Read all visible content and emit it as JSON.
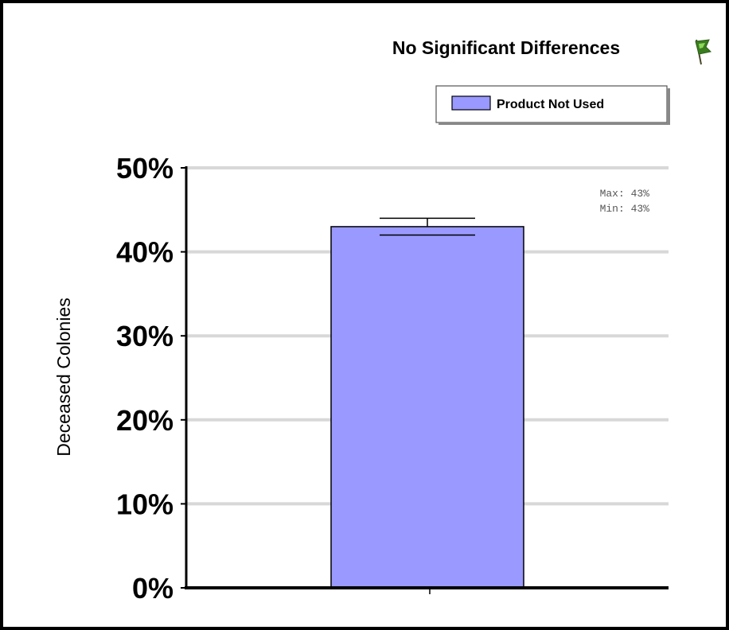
{
  "chart_data": {
    "type": "bar",
    "title": "No Significant Differences",
    "categories": [
      ""
    ],
    "series": [
      {
        "name": "Product Not Used",
        "values": [
          43
        ],
        "error_low": [
          42
        ],
        "error_high": [
          44
        ],
        "color": "#9999ff"
      }
    ],
    "ylabel": "Deceased Colonies",
    "xlabel": "",
    "ylim": [
      0,
      50
    ],
    "yticks": [
      "0%",
      "10%",
      "20%",
      "30%",
      "40%",
      "50%"
    ],
    "grid": true,
    "legend_position": "top-right",
    "annotations": {
      "max": "Max: 43%",
      "min": "Min: 43%"
    }
  },
  "icons": {
    "flag": "flag-icon",
    "flag_color": "#3a7d1f"
  }
}
